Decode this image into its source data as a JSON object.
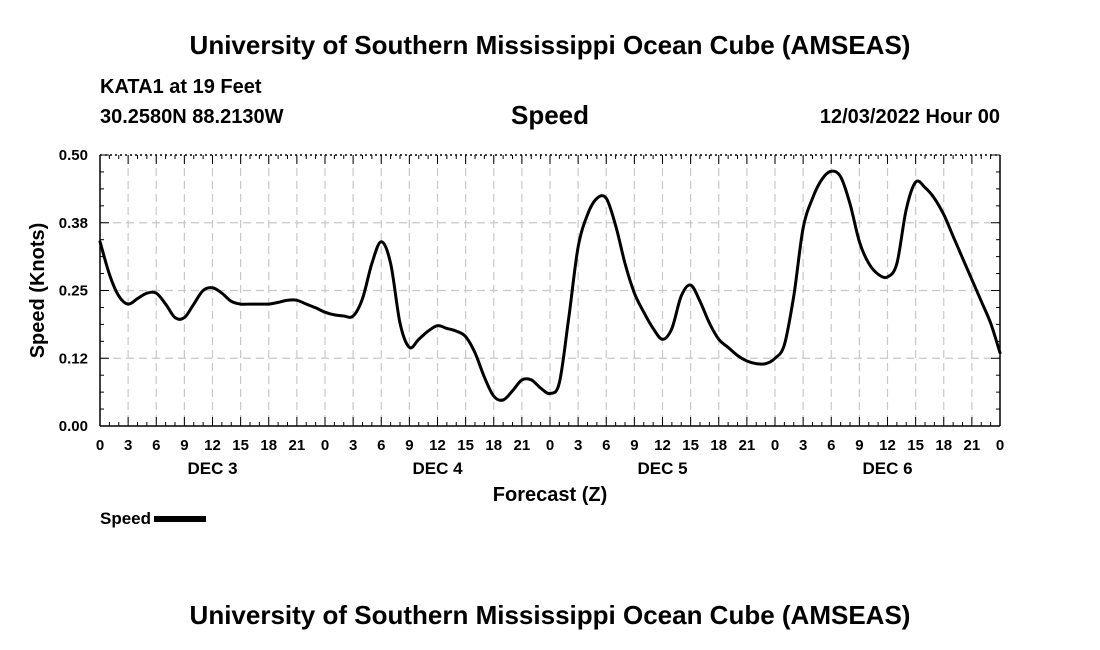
{
  "header": {
    "title_top": "University of Southern Mississippi Ocean Cube (AMSEAS)",
    "station": "KATA1 at 19 Feet",
    "coords": "30.2580N  88.2130W",
    "variable": "Speed",
    "datetime": "12/03/2022 Hour 00"
  },
  "footer": {
    "title_bottom": "University of Southern Mississippi Ocean Cube (AMSEAS)"
  },
  "legend": {
    "label": "Speed",
    "color": "#000000"
  },
  "chart_data": {
    "type": "line",
    "title": "Speed",
    "xlabel": "Forecast (Z)",
    "ylabel": "Speed (Knots)",
    "xlim": [
      0,
      96
    ],
    "ylim": [
      0,
      0.5
    ],
    "grid": true,
    "yticks": [
      0.0,
      0.125,
      0.25,
      0.375,
      0.5
    ],
    "ytick_labels": [
      "0.00",
      "0.12",
      "0.25",
      "0.38",
      "0.50"
    ],
    "xticks": [
      0,
      3,
      6,
      9,
      12,
      15,
      18,
      21,
      24,
      27,
      30,
      33,
      36,
      39,
      42,
      45,
      48,
      51,
      54,
      57,
      60,
      63,
      66,
      69,
      72,
      75,
      78,
      81,
      84,
      87,
      90,
      93,
      96
    ],
    "xtick_labels": [
      "0",
      "3",
      "6",
      "9",
      "12",
      "15",
      "18",
      "21",
      "0",
      "3",
      "6",
      "9",
      "12",
      "15",
      "18",
      "21",
      "0",
      "3",
      "6",
      "9",
      "12",
      "15",
      "18",
      "21",
      "0",
      "3",
      "6",
      "9",
      "12",
      "15",
      "18",
      "21",
      "0"
    ],
    "day_labels": [
      {
        "label": "DEC 3",
        "x": 12
      },
      {
        "label": "DEC 4",
        "x": 36
      },
      {
        "label": "DEC 5",
        "x": 60
      },
      {
        "label": "DEC 6",
        "x": 84
      }
    ],
    "series": [
      {
        "name": "Speed",
        "color": "#000000",
        "x": [
          0,
          1,
          2,
          3,
          4,
          5,
          6,
          7,
          8,
          9,
          10,
          11,
          12,
          13,
          14,
          15,
          16,
          17,
          18,
          19,
          20,
          21,
          22,
          23,
          24,
          25,
          26,
          27,
          28,
          29,
          30,
          31,
          32,
          33,
          34,
          35,
          36,
          37,
          38,
          39,
          40,
          41,
          42,
          43,
          44,
          45,
          46,
          47,
          48,
          49,
          50,
          51,
          52,
          53,
          54,
          55,
          56,
          57,
          58,
          59,
          60,
          61,
          62,
          63,
          64,
          65,
          66,
          67,
          68,
          69,
          70,
          71,
          72,
          73,
          74,
          75,
          76,
          77,
          78,
          79,
          80,
          81,
          82,
          83,
          84,
          85,
          86,
          87,
          88,
          89,
          90,
          91,
          92,
          93,
          94,
          95,
          96
        ],
        "values": [
          0.34,
          0.28,
          0.24,
          0.225,
          0.235,
          0.245,
          0.245,
          0.225,
          0.2,
          0.2,
          0.225,
          0.25,
          0.255,
          0.245,
          0.23,
          0.225,
          0.225,
          0.225,
          0.225,
          0.228,
          0.232,
          0.232,
          0.225,
          0.218,
          0.21,
          0.205,
          0.203,
          0.203,
          0.235,
          0.3,
          0.34,
          0.3,
          0.19,
          0.145,
          0.16,
          0.175,
          0.185,
          0.18,
          0.175,
          0.165,
          0.135,
          0.09,
          0.055,
          0.048,
          0.065,
          0.085,
          0.085,
          0.07,
          0.06,
          0.08,
          0.2,
          0.33,
          0.39,
          0.42,
          0.42,
          0.37,
          0.3,
          0.245,
          0.21,
          0.18,
          0.16,
          0.18,
          0.24,
          0.26,
          0.23,
          0.19,
          0.16,
          0.145,
          0.13,
          0.12,
          0.115,
          0.115,
          0.125,
          0.15,
          0.24,
          0.365,
          0.42,
          0.455,
          0.47,
          0.46,
          0.41,
          0.34,
          0.3,
          0.28,
          0.275,
          0.3,
          0.4,
          0.45,
          0.44,
          0.42,
          0.39,
          0.35,
          0.31,
          0.27,
          0.23,
          0.19,
          0.135
        ]
      }
    ]
  }
}
